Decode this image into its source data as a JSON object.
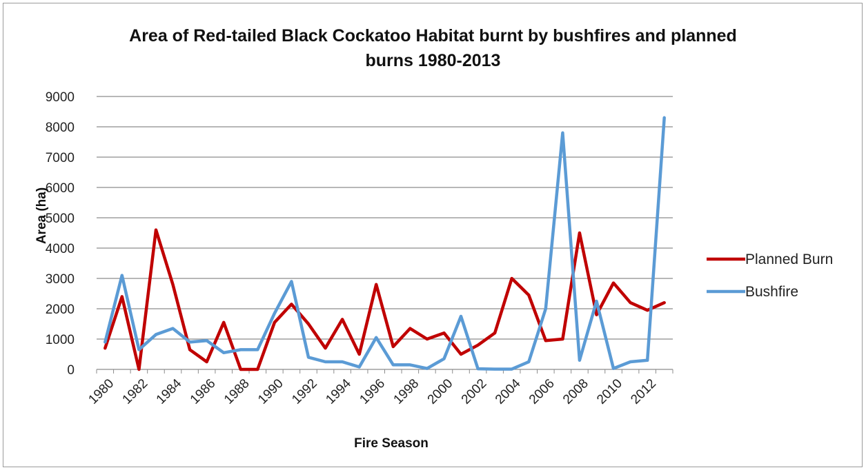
{
  "chart_data": {
    "type": "line",
    "title_line1": "Area of Red-tailed Black Cockatoo Habitat burnt by bushfires and planned",
    "title_line2": "burns 1980-2013",
    "xlabel": "Fire Season",
    "ylabel": "Area (ha)",
    "ylim": [
      0,
      9000
    ],
    "y_ticks": [
      "0",
      "1000",
      "2000",
      "3000",
      "4000",
      "5000",
      "6000",
      "7000",
      "8000",
      "9000"
    ],
    "x": [
      1980,
      1981,
      1982,
      1983,
      1984,
      1985,
      1986,
      1987,
      1988,
      1989,
      1990,
      1991,
      1992,
      1993,
      1994,
      1995,
      1996,
      1997,
      1998,
      1999,
      2000,
      2001,
      2002,
      2003,
      2004,
      2005,
      2006,
      2007,
      2008,
      2009,
      2010,
      2011,
      2012,
      2013
    ],
    "x_tick_labels": [
      "1980",
      "1982",
      "1984",
      "1986",
      "1988",
      "1990",
      "1992",
      "1994",
      "1996",
      "1998",
      "2000",
      "2002",
      "2004",
      "2006",
      "2008",
      "2010",
      "2012"
    ],
    "x_tick_years": [
      1980,
      1982,
      1984,
      1986,
      1988,
      1990,
      1992,
      1994,
      1996,
      1998,
      2000,
      2002,
      2004,
      2006,
      2008,
      2010,
      2012
    ],
    "grid": true,
    "legend_position": "right",
    "series": [
      {
        "name": "Planned Burn",
        "color": "#c00000",
        "values": [
          700,
          2400,
          0,
          4600,
          2800,
          650,
          250,
          1550,
          0,
          0,
          1550,
          2150,
          1500,
          700,
          1650,
          500,
          2800,
          750,
          1350,
          1000,
          1200,
          500,
          800,
          1200,
          3000,
          2450,
          950,
          1000,
          4500,
          1800,
          2850,
          2200,
          1950,
          2200
        ]
      },
      {
        "name": "Bushfire",
        "color": "#5b9bd5",
        "values": [
          900,
          3100,
          650,
          1150,
          1350,
          900,
          950,
          550,
          650,
          650,
          1850,
          2900,
          400,
          250,
          250,
          80,
          1050,
          150,
          150,
          30,
          350,
          1750,
          20,
          10,
          10,
          250,
          2000,
          7800,
          300,
          2250,
          30,
          250,
          300,
          8300
        ]
      }
    ]
  }
}
